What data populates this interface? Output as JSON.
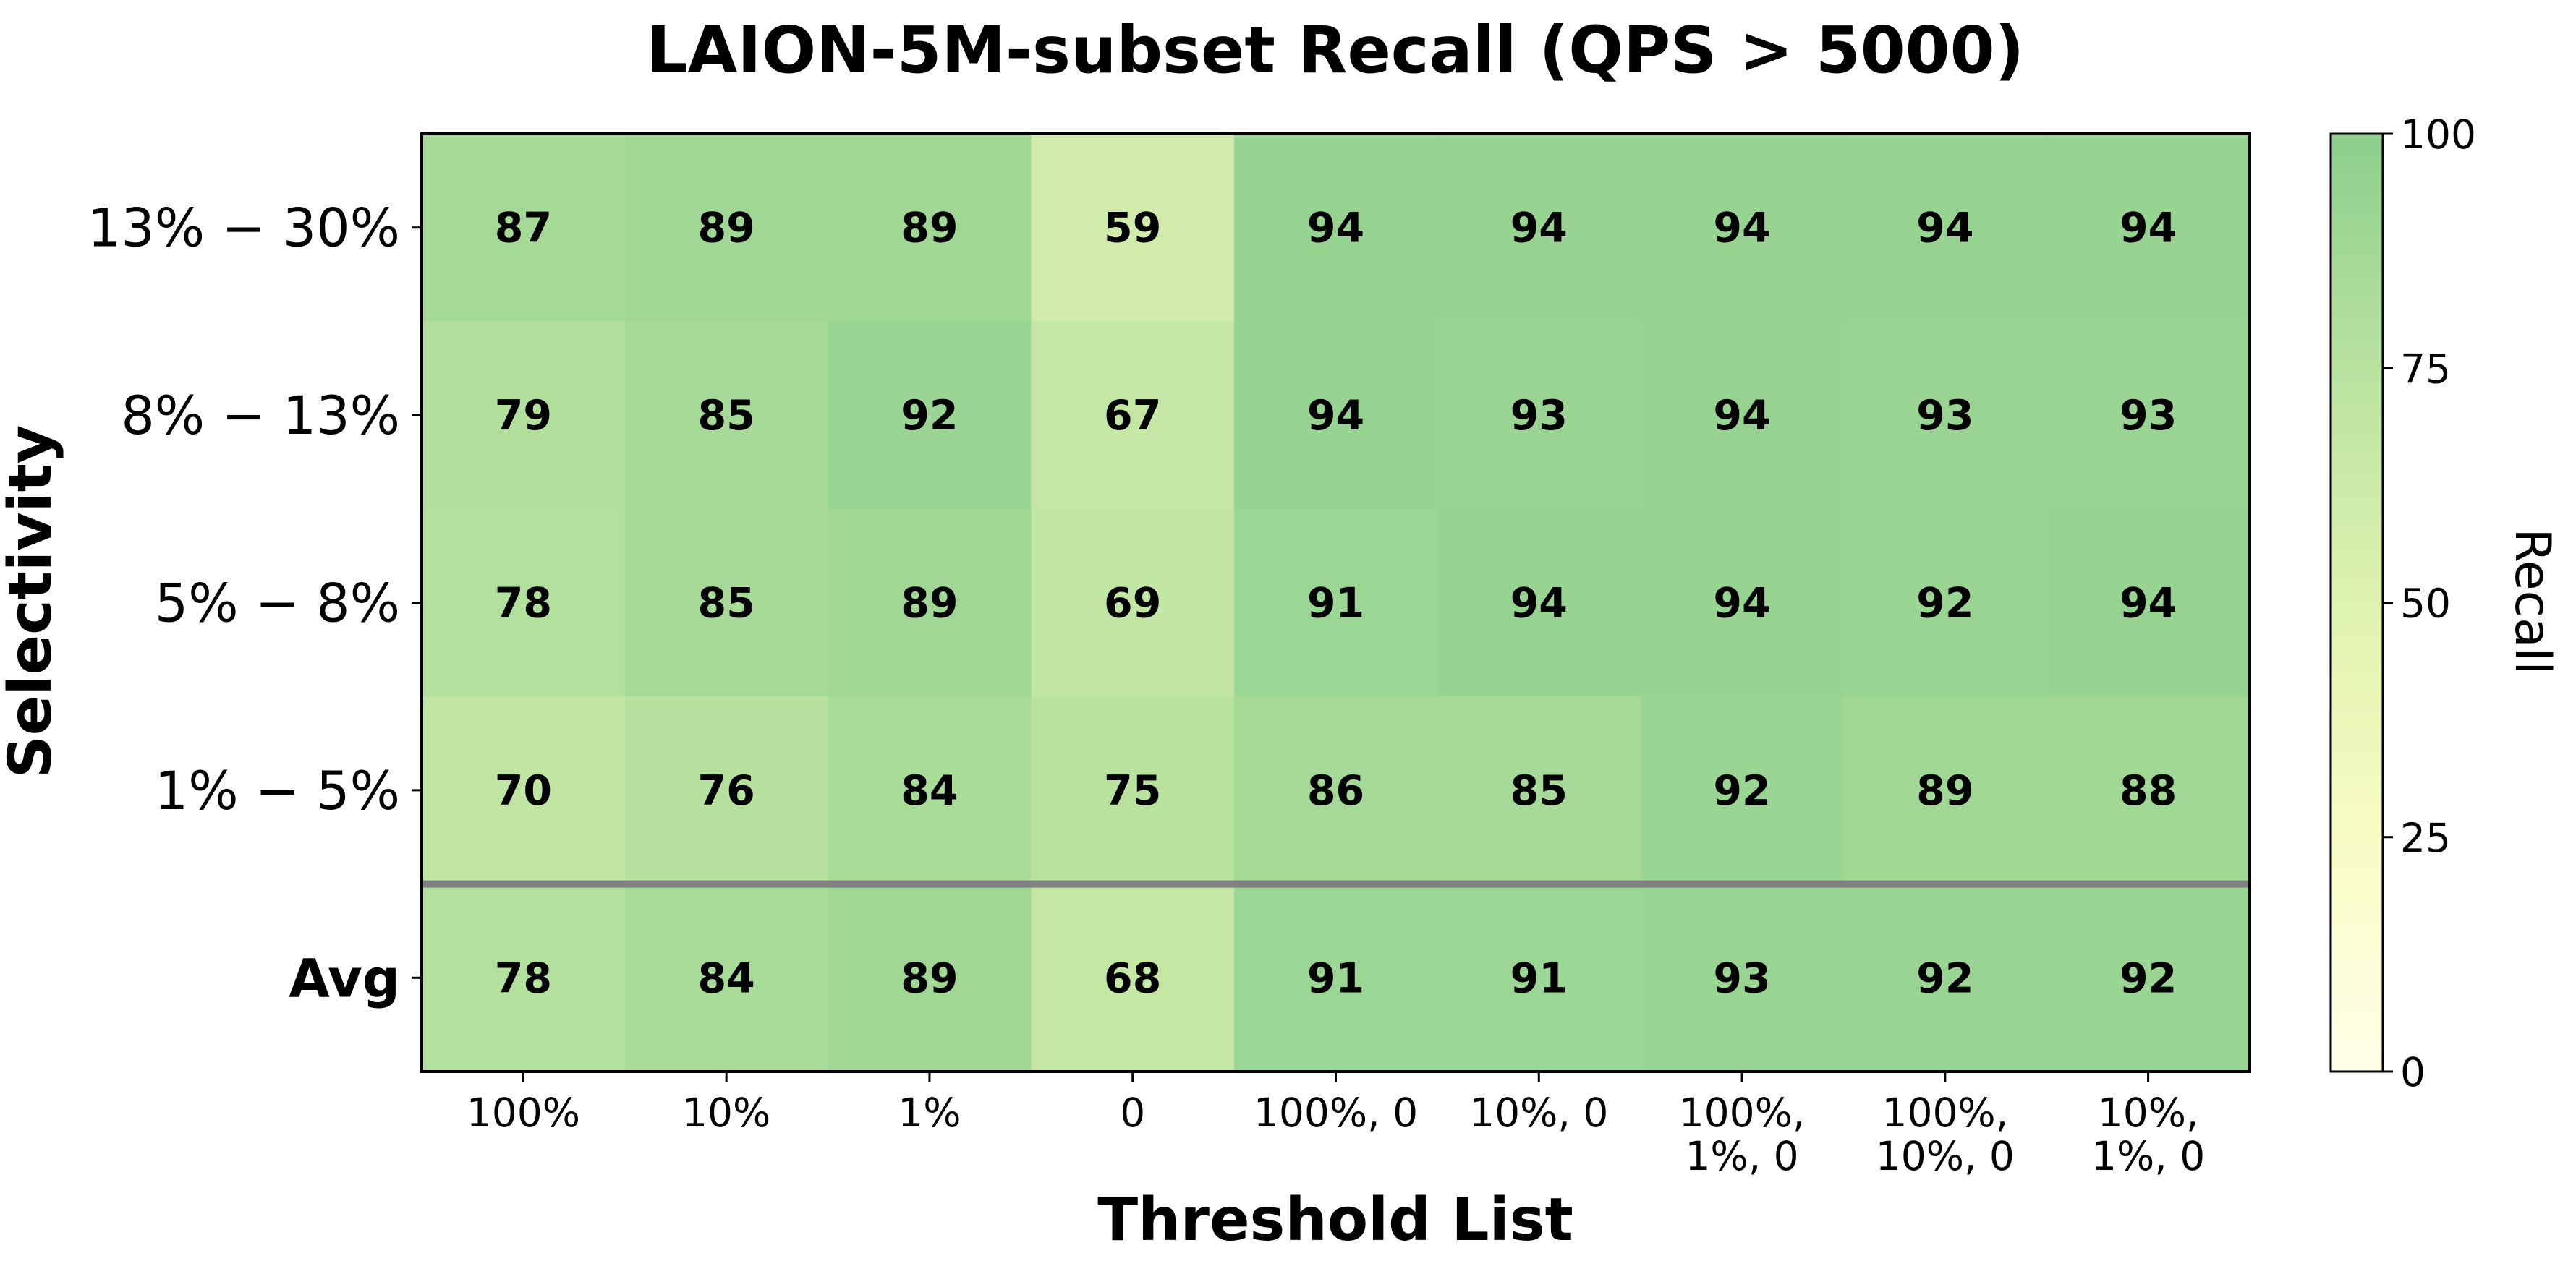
{
  "chart_data": {
    "type": "heatmap",
    "title": "LAION-5M-subset Recall (QPS > 5000)",
    "xlabel": "Threshold List",
    "ylabel": "Selectivity",
    "x_categories": [
      [
        "100%"
      ],
      [
        "10%"
      ],
      [
        "1%"
      ],
      [
        "0"
      ],
      [
        "100%, 0"
      ],
      [
        "10%, 0"
      ],
      [
        "100%,",
        "1%, 0"
      ],
      [
        "100%,",
        "10%, 0"
      ],
      [
        "10%,",
        "1%, 0"
      ]
    ],
    "y_categories": [
      "13% − 30%",
      "8% − 13%",
      "5% − 8%",
      "1% − 5%",
      "Avg"
    ],
    "values": [
      [
        87,
        89,
        89,
        59,
        94,
        94,
        94,
        94,
        94
      ],
      [
        79,
        85,
        92,
        67,
        94,
        93,
        94,
        93,
        93
      ],
      [
        78,
        85,
        89,
        69,
        91,
        94,
        94,
        92,
        94
      ],
      [
        70,
        76,
        84,
        75,
        86,
        85,
        92,
        89,
        88
      ],
      [
        78,
        84,
        89,
        68,
        91,
        91,
        93,
        92,
        92
      ]
    ],
    "separator_after_row": 3,
    "colorscale": [
      "#ffffe5",
      "#f7fcb9",
      "#d9f0a3",
      "#addd8e",
      "#78c679"
    ],
    "colorscale_alpha": 0.85,
    "colorbar": {
      "label": "Recall",
      "range": [
        0,
        100
      ],
      "ticks": [
        0,
        25,
        50,
        75,
        100
      ]
    }
  }
}
